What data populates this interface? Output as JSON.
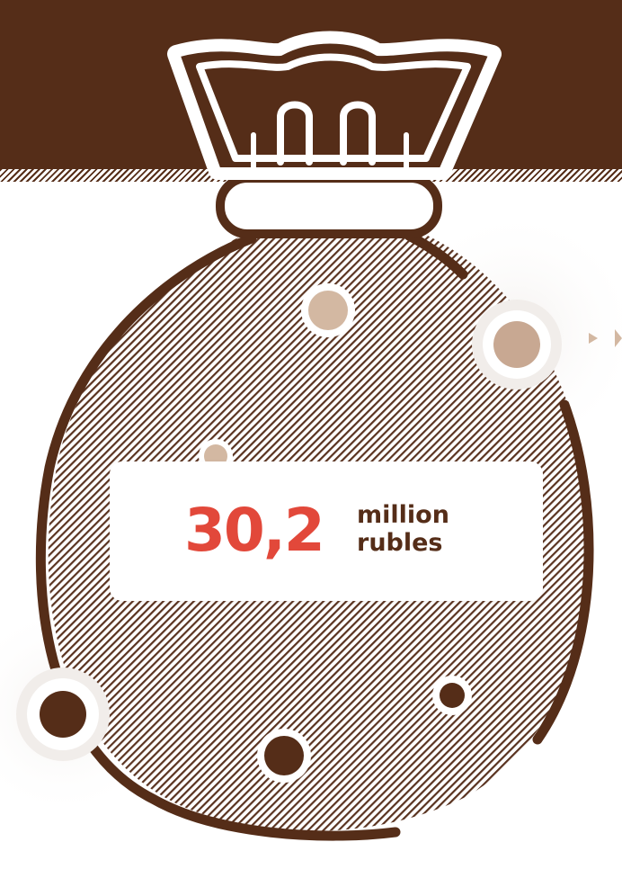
{
  "amount": {
    "value": "30,2",
    "unit_line1": "million",
    "unit_line2": "rubles"
  },
  "colors": {
    "brown": "#552d18",
    "accent_red": "#e2483a",
    "beige": "#d3b8a2",
    "background": "#ffffff"
  },
  "icons": [
    "money-bag-icon",
    "arrow-right-icon"
  ]
}
